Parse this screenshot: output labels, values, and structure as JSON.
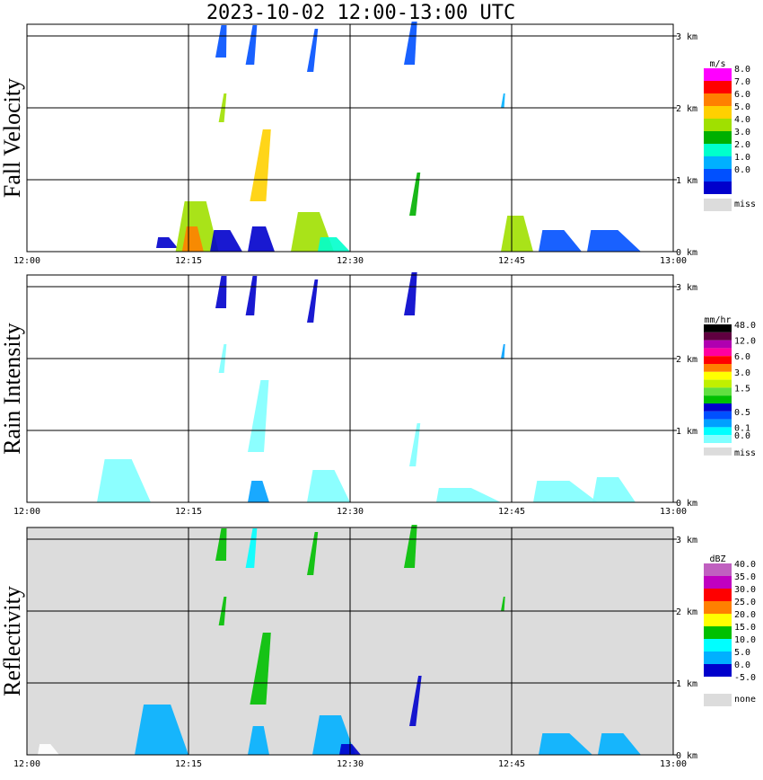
{
  "title": "2023-10-02   12:00-13:00 UTC",
  "chart_data": [
    {
      "type": "heatmap",
      "ylabel": "Fall Velocity",
      "x_ticks": [
        "12:00",
        "12:15",
        "12:30",
        "12:45",
        "13:00"
      ],
      "y_ticks": [
        "0 km",
        "1 km",
        "2 km",
        "3 km"
      ],
      "ylim_km": [
        0,
        3.2
      ],
      "background": "#ffffff",
      "legend_unit": "m/s",
      "legend": [
        {
          "label": "8.0",
          "color": "#ff00ff"
        },
        {
          "label": "7.0",
          "color": "#ff0000"
        },
        {
          "label": "6.0",
          "color": "#ff8000"
        },
        {
          "label": "5.0",
          "color": "#ffd000"
        },
        {
          "label": "4.0",
          "color": "#a0e000"
        },
        {
          "label": "3.0",
          "color": "#00b000"
        },
        {
          "label": "2.0",
          "color": "#00ffcc"
        },
        {
          "label": "1.0",
          "color": "#00b0ff"
        },
        {
          "label": "0.0",
          "color": "#0050ff"
        },
        {
          "label": "",
          "color": "#0000cc"
        },
        {
          "label": "miss",
          "color": "#dcdcdc",
          "gap": true
        }
      ],
      "echoes": [
        {
          "t": 12.0,
          "h0": 0.05,
          "h1": 0.2,
          "w": 2.0,
          "c": "#0000cc"
        },
        {
          "t": 13.8,
          "h0": 0.0,
          "h1": 0.7,
          "w": 4.0,
          "c": "#a0e000"
        },
        {
          "t": 14.4,
          "h0": 0.0,
          "h1": 0.35,
          "w": 2.0,
          "c": "#ff8000"
        },
        {
          "t": 17.0,
          "h0": 0.0,
          "h1": 0.3,
          "w": 3.0,
          "c": "#0000cc"
        },
        {
          "t": 17.5,
          "h0": 2.7,
          "h1": 3.15,
          "w": 1.0,
          "c": "#0050ff"
        },
        {
          "t": 17.8,
          "h0": 1.8,
          "h1": 2.2,
          "w": 0.5,
          "c": "#a0e000"
        },
        {
          "t": 20.7,
          "h0": 0.7,
          "h1": 1.7,
          "w": 1.5,
          "c": "#ffd000"
        },
        {
          "t": 20.5,
          "h0": 0.0,
          "h1": 0.35,
          "w": 2.5,
          "c": "#0000cc"
        },
        {
          "t": 20.3,
          "h0": 2.6,
          "h1": 3.15,
          "w": 0.8,
          "c": "#0050ff"
        },
        {
          "t": 24.5,
          "h0": 0.0,
          "h1": 0.55,
          "w": 4.0,
          "c": "#a0e000"
        },
        {
          "t": 26.0,
          "h0": 2.5,
          "h1": 3.1,
          "w": 0.6,
          "c": "#0050ff"
        },
        {
          "t": 27.0,
          "h0": 0.0,
          "h1": 0.2,
          "w": 3.0,
          "c": "#00ffcc"
        },
        {
          "t": 35.5,
          "h0": 0.5,
          "h1": 1.1,
          "w": 0.6,
          "c": "#00b000"
        },
        {
          "t": 35.0,
          "h0": 2.6,
          "h1": 3.2,
          "w": 1.0,
          "c": "#0050ff"
        },
        {
          "t": 44.0,
          "h0": 0.0,
          "h1": 0.5,
          "w": 3.0,
          "c": "#a0e000"
        },
        {
          "t": 44.0,
          "h0": 2.0,
          "h1": 2.2,
          "w": 0.3,
          "c": "#00b0ff"
        },
        {
          "t": 47.5,
          "h0": 0.0,
          "h1": 0.3,
          "w": 4.0,
          "c": "#0050ff"
        },
        {
          "t": 52.0,
          "h0": 0.0,
          "h1": 0.3,
          "w": 5.0,
          "c": "#0050ff"
        }
      ]
    },
    {
      "type": "heatmap",
      "ylabel": "Rain Intensity",
      "x_ticks": [
        "12:00",
        "12:15",
        "12:30",
        "12:45",
        "13:00"
      ],
      "y_ticks": [
        "0 km",
        "1 km",
        "2 km",
        "3 km"
      ],
      "ylim_km": [
        0,
        3.2
      ],
      "background": "#ffffff",
      "legend_unit": "mm/hr",
      "legend": [
        {
          "label": "48.0",
          "color": "#000000"
        },
        {
          "label": "",
          "color": "#600040"
        },
        {
          "label": "12.0",
          "color": "#b000b0"
        },
        {
          "label": "",
          "color": "#ff00a0"
        },
        {
          "label": "6.0",
          "color": "#ff0000"
        },
        {
          "label": "",
          "color": "#ff8000"
        },
        {
          "label": "3.0",
          "color": "#ffff00"
        },
        {
          "label": "",
          "color": "#c0f000"
        },
        {
          "label": "1.5",
          "color": "#60e040"
        },
        {
          "label": "",
          "color": "#00c000"
        },
        {
          "label": "",
          "color": "#0000cc"
        },
        {
          "label": "0.5",
          "color": "#0050ff"
        },
        {
          "label": "",
          "color": "#00a0ff"
        },
        {
          "label": "0.1",
          "color": "#00ffff"
        },
        {
          "label": "0.0",
          "color": "#80ffff"
        },
        {
          "label": "miss",
          "color": "#dcdcdc",
          "gap": true
        }
      ],
      "echoes": [
        {
          "t": 6.5,
          "h0": 0.0,
          "h1": 0.6,
          "w": 5.0,
          "c": "#80ffff"
        },
        {
          "t": 17.5,
          "h0": 2.7,
          "h1": 3.15,
          "w": 1.0,
          "c": "#0000cc"
        },
        {
          "t": 17.8,
          "h0": 1.8,
          "h1": 2.2,
          "w": 0.5,
          "c": "#80ffff"
        },
        {
          "t": 20.5,
          "h0": 0.7,
          "h1": 1.7,
          "w": 1.5,
          "c": "#80ffff"
        },
        {
          "t": 20.5,
          "h0": 0.0,
          "h1": 0.3,
          "w": 2.0,
          "c": "#00a0ff"
        },
        {
          "t": 20.3,
          "h0": 2.6,
          "h1": 3.15,
          "w": 0.8,
          "c": "#0000cc"
        },
        {
          "t": 26.0,
          "h0": 0.0,
          "h1": 0.45,
          "w": 4.0,
          "c": "#80ffff"
        },
        {
          "t": 26.0,
          "h0": 2.5,
          "h1": 3.1,
          "w": 0.6,
          "c": "#0000cc"
        },
        {
          "t": 35.5,
          "h0": 0.5,
          "h1": 1.1,
          "w": 0.6,
          "c": "#80ffff"
        },
        {
          "t": 35.0,
          "h0": 2.6,
          "h1": 3.2,
          "w": 1.0,
          "c": "#0000cc"
        },
        {
          "t": 38.0,
          "h0": 0.0,
          "h1": 0.2,
          "w": 6.0,
          "c": "#80ffff"
        },
        {
          "t": 44.0,
          "h0": 2.0,
          "h1": 2.2,
          "w": 0.3,
          "c": "#00a0ff"
        },
        {
          "t": 47.0,
          "h0": 0.0,
          "h1": 0.3,
          "w": 6.0,
          "c": "#80ffff"
        },
        {
          "t": 52.5,
          "h0": 0.0,
          "h1": 0.35,
          "w": 4.0,
          "c": "#80ffff"
        }
      ]
    },
    {
      "type": "heatmap",
      "ylabel": "Reflectivity",
      "x_ticks": [
        "12:00",
        "12:15",
        "12:30",
        "12:45",
        "13:00"
      ],
      "y_ticks": [
        "0 km",
        "1 km",
        "2 km",
        "3 km"
      ],
      "ylim_km": [
        0,
        3.2
      ],
      "background": "#dcdcdc",
      "legend_unit": "dBZ",
      "legend": [
        {
          "label": "40.0",
          "color": "#c060c0"
        },
        {
          "label": "35.0",
          "color": "#c000c0"
        },
        {
          "label": "30.0",
          "color": "#ff0000"
        },
        {
          "label": "25.0",
          "color": "#ff8000"
        },
        {
          "label": "20.0",
          "color": "#ffff00"
        },
        {
          "label": "15.0",
          "color": "#00c000"
        },
        {
          "label": "10.0",
          "color": "#00ffff"
        },
        {
          "label": "5.0",
          "color": "#00b0ff"
        },
        {
          "label": "0.0",
          "color": "#0000cc"
        },
        {
          "label": "-5.0",
          "color": "#ffffff"
        },
        {
          "label": "none",
          "color": "#dcdcdc",
          "gap": true
        }
      ],
      "echoes": [
        {
          "t": 1.0,
          "h0": 0.0,
          "h1": 0.15,
          "w": 2.0,
          "c": "#ffffff"
        },
        {
          "t": 10.0,
          "h0": 0.0,
          "h1": 0.7,
          "w": 5.0,
          "c": "#00b0ff"
        },
        {
          "t": 17.5,
          "h0": 2.7,
          "h1": 3.15,
          "w": 1.0,
          "c": "#00c000"
        },
        {
          "t": 17.8,
          "h0": 1.8,
          "h1": 2.2,
          "w": 0.5,
          "c": "#00c000"
        },
        {
          "t": 20.7,
          "h0": 0.7,
          "h1": 1.7,
          "w": 1.5,
          "c": "#00c000"
        },
        {
          "t": 20.5,
          "h0": 0.0,
          "h1": 0.4,
          "w": 2.0,
          "c": "#00b0ff"
        },
        {
          "t": 20.3,
          "h0": 2.6,
          "h1": 3.15,
          "w": 0.8,
          "c": "#00ffff"
        },
        {
          "t": 26.5,
          "h0": 0.0,
          "h1": 0.55,
          "w": 4.0,
          "c": "#00b0ff"
        },
        {
          "t": 26.0,
          "h0": 2.5,
          "h1": 3.1,
          "w": 0.6,
          "c": "#00c000"
        },
        {
          "t": 29.0,
          "h0": 0.0,
          "h1": 0.15,
          "w": 2.0,
          "c": "#0000cc"
        },
        {
          "t": 35.5,
          "h0": 0.4,
          "h1": 1.1,
          "w": 0.6,
          "c": "#0000cc"
        },
        {
          "t": 35.0,
          "h0": 2.6,
          "h1": 3.2,
          "w": 1.0,
          "c": "#00c000"
        },
        {
          "t": 44.0,
          "h0": 2.0,
          "h1": 2.2,
          "w": 0.3,
          "c": "#00c000"
        },
        {
          "t": 47.5,
          "h0": 0.0,
          "h1": 0.3,
          "w": 5.0,
          "c": "#00b0ff"
        },
        {
          "t": 53.0,
          "h0": 0.0,
          "h1": 0.3,
          "w": 4.0,
          "c": "#00b0ff"
        }
      ]
    }
  ]
}
